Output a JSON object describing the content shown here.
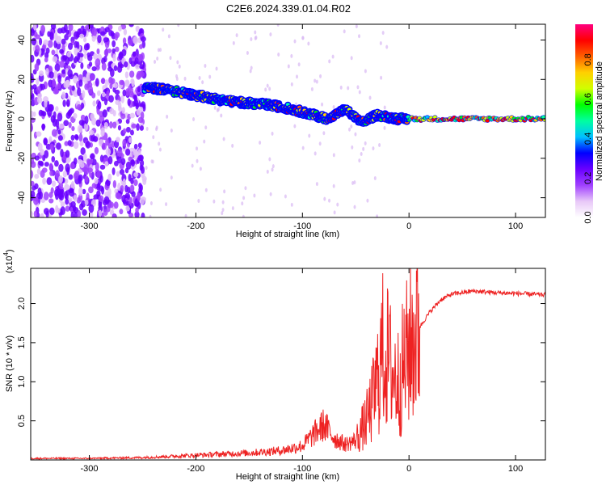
{
  "title": "C2E6.2024.339.01.04.R02",
  "chart_data": [
    {
      "type": "heatmap",
      "xlabel": "Height of straight line (km)",
      "ylabel": "Frequency (Hz)",
      "xlim": [
        -355,
        128
      ],
      "ylim": [
        -50,
        48
      ],
      "x_ticks": [
        -300,
        -200,
        -100,
        0,
        100
      ],
      "y_ticks": [
        -40,
        -20,
        0,
        20,
        40
      ],
      "colorbar": {
        "label": "Normalized spectral amplitude",
        "ticks": [
          0.0,
          0.2,
          0.4,
          0.6,
          0.8
        ],
        "range": [
          0,
          0.98
        ],
        "colors": [
          "#ffffff",
          "#e8c8f8",
          "#a040ff",
          "#6a00ff",
          "#0000ff",
          "#00c0ff",
          "#00ffa0",
          "#00ff00",
          "#d0ff00",
          "#ffd000",
          "#ff6000",
          "#ff0000",
          "#ff0080"
        ]
      },
      "trace": {
        "x": [
          -248,
          -230,
          -210,
          -190,
          -170,
          -150,
          -130,
          -110,
          -90,
          -75,
          -60,
          -45,
          -30,
          -20,
          -10,
          0,
          20,
          60,
          100,
          128
        ],
        "y": [
          16,
          15,
          13,
          11,
          9,
          8,
          7,
          5,
          2,
          0,
          5,
          -2,
          2,
          1,
          0,
          0,
          0,
          0,
          0,
          0
        ]
      }
    },
    {
      "type": "line",
      "xlabel": "Height of straight line (km)",
      "ylabel": "SNR (10 * v/v)",
      "y_multiplier": "(x10",
      "y_exponent": "4",
      "xlim": [
        -355,
        128
      ],
      "ylim": [
        0,
        2.45
      ],
      "x_ticks": [
        -300,
        -200,
        -100,
        0,
        100
      ],
      "y_ticks": [
        0.5,
        1.0,
        1.5,
        2.0
      ],
      "series": [
        {
          "color": "#ee2222",
          "x": [
            -355,
            -300,
            -250,
            -200,
            -150,
            -120,
            -100,
            -90,
            -80,
            -70,
            -60,
            -50,
            -40,
            -35,
            -30,
            -25,
            -20,
            -15,
            -10,
            -5,
            0,
            10,
            20,
            30,
            40,
            60,
            80,
            100,
            128
          ],
          "y": [
            0.02,
            0.02,
            0.03,
            0.06,
            0.09,
            0.12,
            0.18,
            0.32,
            0.45,
            0.28,
            0.2,
            0.25,
            0.5,
            0.7,
            1.0,
            1.4,
            1.3,
            1.1,
            1.0,
            1.2,
            1.45,
            1.7,
            1.9,
            2.05,
            2.12,
            2.16,
            2.14,
            2.13,
            2.11
          ]
        }
      ]
    }
  ]
}
